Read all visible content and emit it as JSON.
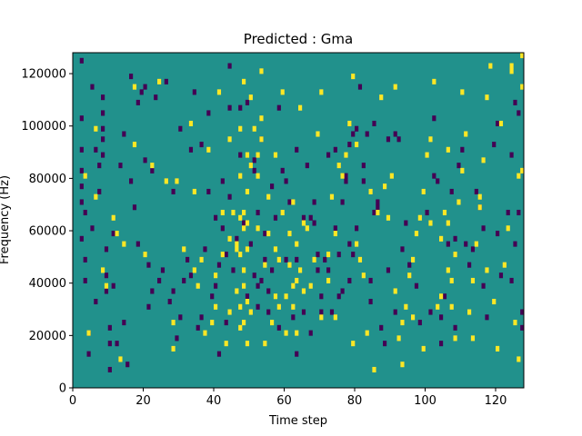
{
  "chart_data": {
    "type": "heatmap",
    "title": "Predicted : Gma",
    "xlabel": "Time step",
    "ylabel": "Frequency (Hz)",
    "xlim": [
      0,
      128
    ],
    "ylim": [
      0,
      128000
    ],
    "xticks": [
      0,
      20,
      40,
      60,
      80,
      100,
      120
    ],
    "yticks": [
      0,
      20000,
      40000,
      60000,
      80000,
      100000,
      120000
    ],
    "xtick_labels": [
      "0",
      "20",
      "40",
      "60",
      "80",
      "100",
      "120"
    ],
    "ytick_labels": [
      "0",
      "20000",
      "40000",
      "60000",
      "80000",
      "100000",
      "120000"
    ],
    "grid": false,
    "colormap": "viridis",
    "colors": {
      "background": "#21918c",
      "low": "#440154",
      "high": "#fde725"
    },
    "values_legend": {
      "background": 0,
      "low": -1,
      "high": 1
    },
    "n_time_steps": 128,
    "n_freq_bins": 64,
    "bin_hz": 2000,
    "low_cells": [
      [
        2,
        62
      ],
      [
        2,
        51
      ],
      [
        2,
        45
      ],
      [
        2,
        41
      ],
      [
        2,
        38
      ],
      [
        2,
        35
      ],
      [
        3,
        33
      ],
      [
        2,
        28
      ],
      [
        3,
        24
      ],
      [
        3,
        20
      ],
      [
        4,
        10
      ],
      [
        4,
        6
      ],
      [
        5,
        57
      ],
      [
        6,
        45
      ],
      [
        7,
        42
      ],
      [
        7,
        37
      ],
      [
        8,
        55
      ],
      [
        8,
        52
      ],
      [
        8,
        49
      ],
      [
        8,
        47
      ],
      [
        8,
        44
      ],
      [
        9,
        26
      ],
      [
        9,
        21
      ],
      [
        9,
        18
      ],
      [
        10,
        11
      ],
      [
        10,
        8
      ],
      [
        11,
        29
      ],
      [
        11,
        19
      ],
      [
        14,
        12
      ],
      [
        15,
        4
      ],
      [
        16,
        59
      ],
      [
        18,
        54
      ],
      [
        19,
        56
      ],
      [
        20,
        57
      ],
      [
        21,
        23
      ],
      [
        21,
        15
      ],
      [
        22,
        18
      ],
      [
        22,
        41
      ],
      [
        24,
        20
      ],
      [
        25,
        22
      ],
      [
        28,
        37
      ],
      [
        28,
        18
      ],
      [
        30,
        49
      ],
      [
        32,
        24
      ],
      [
        33,
        21
      ],
      [
        35,
        11
      ],
      [
        36,
        13
      ],
      [
        37,
        26
      ],
      [
        38,
        37
      ],
      [
        39,
        17
      ],
      [
        40,
        19
      ],
      [
        40,
        32
      ],
      [
        41,
        23
      ],
      [
        42,
        30
      ],
      [
        42,
        39
      ],
      [
        43,
        25
      ],
      [
        44,
        53
      ],
      [
        44,
        61
      ],
      [
        47,
        53
      ],
      [
        47,
        44
      ],
      [
        48,
        31
      ],
      [
        49,
        54
      ],
      [
        50,
        27
      ],
      [
        51,
        21
      ],
      [
        51,
        41
      ],
      [
        51,
        43
      ],
      [
        52,
        15
      ],
      [
        52,
        19
      ],
      [
        53,
        20
      ],
      [
        53,
        47
      ],
      [
        54,
        24
      ],
      [
        54,
        29
      ],
      [
        55,
        18
      ],
      [
        56,
        22
      ],
      [
        57,
        32
      ],
      [
        58,
        53
      ],
      [
        59,
        41
      ],
      [
        60,
        24
      ],
      [
        61,
        35
      ],
      [
        62,
        13
      ],
      [
        63,
        24
      ],
      [
        63,
        45
      ],
      [
        65,
        32
      ],
      [
        66,
        42
      ],
      [
        68,
        31
      ],
      [
        68,
        35
      ],
      [
        69,
        22
      ],
      [
        70,
        14
      ],
      [
        70,
        17
      ],
      [
        71,
        24
      ],
      [
        72,
        44
      ],
      [
        73,
        14
      ],
      [
        74,
        30
      ],
      [
        75,
        25
      ],
      [
        76,
        18
      ],
      [
        76,
        35
      ],
      [
        77,
        40
      ],
      [
        77,
        39
      ],
      [
        78,
        27
      ],
      [
        78,
        20
      ],
      [
        79,
        25
      ],
      [
        80,
        30
      ],
      [
        80,
        49
      ],
      [
        81,
        57
      ],
      [
        82,
        39
      ],
      [
        82,
        42
      ],
      [
        83,
        48
      ],
      [
        84,
        20
      ],
      [
        85,
        50
      ],
      [
        86,
        34
      ],
      [
        86,
        35
      ],
      [
        89,
        22
      ],
      [
        89,
        47
      ],
      [
        91,
        14
      ],
      [
        91,
        48
      ],
      [
        93,
        26
      ],
      [
        94,
        31
      ],
      [
        95,
        23
      ],
      [
        98,
        12
      ],
      [
        101,
        14
      ],
      [
        102,
        40
      ],
      [
        102,
        51
      ],
      [
        103,
        39
      ],
      [
        104,
        13
      ],
      [
        106,
        27
      ],
      [
        107,
        37
      ],
      [
        108,
        11
      ],
      [
        108,
        28
      ],
      [
        109,
        42
      ],
      [
        110,
        45
      ],
      [
        111,
        27
      ],
      [
        112,
        23
      ],
      [
        114,
        37
      ],
      [
        115,
        34
      ],
      [
        116,
        30
      ],
      [
        117,
        13
      ],
      [
        119,
        46
      ],
      [
        120,
        29
      ],
      [
        120,
        50
      ],
      [
        121,
        21
      ],
      [
        123,
        33
      ],
      [
        124,
        20
      ],
      [
        124,
        44
      ],
      [
        125,
        27
      ],
      [
        126,
        33
      ],
      [
        127,
        11
      ],
      [
        127,
        14
      ],
      [
        126,
        52
      ],
      [
        125,
        54
      ],
      [
        116,
        19
      ],
      [
        113,
        26
      ],
      [
        105,
        17
      ],
      [
        104,
        8
      ],
      [
        100,
        33
      ],
      [
        97,
        19
      ],
      [
        92,
        47
      ],
      [
        88,
        8
      ],
      [
        87,
        11
      ],
      [
        85,
        33
      ],
      [
        84,
        16
      ],
      [
        79,
        48
      ],
      [
        78,
        46
      ],
      [
        75,
        17
      ],
      [
        74,
        45
      ],
      [
        72,
        22
      ],
      [
        69,
        25
      ],
      [
        67,
        10
      ],
      [
        67,
        32
      ],
      [
        65,
        14
      ],
      [
        63,
        6
      ],
      [
        60,
        39
      ],
      [
        58,
        11
      ],
      [
        56,
        38
      ],
      [
        55,
        14
      ],
      [
        52,
        33
      ],
      [
        49,
        17
      ],
      [
        46,
        28
      ],
      [
        45,
        22
      ],
      [
        44,
        36
      ],
      [
        43,
        12
      ],
      [
        41,
        6
      ],
      [
        38,
        52
      ],
      [
        36,
        46
      ],
      [
        34,
        56
      ],
      [
        33,
        45
      ],
      [
        31,
        20
      ],
      [
        30,
        13
      ],
      [
        29,
        9
      ],
      [
        27,
        16
      ],
      [
        26,
        58
      ],
      [
        23,
        55
      ],
      [
        20,
        43
      ],
      [
        18,
        27
      ],
      [
        17,
        34
      ],
      [
        16,
        39
      ],
      [
        14,
        48
      ],
      [
        13,
        42
      ],
      [
        12,
        8
      ],
      [
        10,
        3
      ],
      [
        6,
        16
      ],
      [
        5,
        30
      ]
    ],
    "high_cells": [
      [
        3,
        40
      ],
      [
        4,
        10
      ],
      [
        6,
        49
      ],
      [
        6,
        36
      ],
      [
        8,
        22
      ],
      [
        9,
        19
      ],
      [
        11,
        32
      ],
      [
        12,
        29
      ],
      [
        13,
        5
      ],
      [
        14,
        27
      ],
      [
        17,
        57
      ],
      [
        17,
        46
      ],
      [
        20,
        25
      ],
      [
        22,
        42
      ],
      [
        24,
        58
      ],
      [
        26,
        39
      ],
      [
        28,
        7
      ],
      [
        28,
        12
      ],
      [
        29,
        39
      ],
      [
        31,
        26
      ],
      [
        33,
        50
      ],
      [
        34,
        22
      ],
      [
        34,
        37
      ],
      [
        35,
        19
      ],
      [
        36,
        24
      ],
      [
        37,
        10
      ],
      [
        38,
        45
      ],
      [
        39,
        12
      ],
      [
        40,
        15
      ],
      [
        40,
        21
      ],
      [
        41,
        56
      ],
      [
        42,
        33
      ],
      [
        44,
        47
      ],
      [
        44,
        28
      ],
      [
        46,
        18
      ],
      [
        46,
        26
      ],
      [
        47,
        11
      ],
      [
        47,
        15
      ],
      [
        47,
        25
      ],
      [
        47,
        32
      ],
      [
        47,
        40
      ],
      [
        48,
        12
      ],
      [
        48,
        19
      ],
      [
        48,
        22
      ],
      [
        48,
        30
      ],
      [
        48,
        33
      ],
      [
        49,
        8
      ],
      [
        49,
        16
      ],
      [
        49,
        26
      ],
      [
        49,
        31
      ],
      [
        49,
        37
      ],
      [
        50,
        42
      ],
      [
        50,
        55
      ],
      [
        52,
        40
      ],
      [
        52,
        44
      ],
      [
        53,
        47
      ],
      [
        53,
        51
      ],
      [
        53,
        60
      ],
      [
        54,
        23
      ],
      [
        55,
        29
      ],
      [
        56,
        12
      ],
      [
        57,
        17
      ],
      [
        57,
        26
      ],
      [
        58,
        15
      ],
      [
        58,
        24
      ],
      [
        59,
        33
      ],
      [
        60,
        10
      ],
      [
        60,
        17
      ],
      [
        61,
        23
      ],
      [
        61,
        29
      ],
      [
        62,
        15
      ],
      [
        62,
        19
      ],
      [
        63,
        10
      ],
      [
        63,
        20
      ],
      [
        63,
        27
      ],
      [
        64,
        22
      ],
      [
        65,
        18
      ],
      [
        65,
        31
      ],
      [
        67,
        19
      ],
      [
        68,
        24
      ],
      [
        70,
        13
      ],
      [
        70,
        56
      ],
      [
        72,
        25
      ],
      [
        73,
        36
      ],
      [
        74,
        29
      ],
      [
        75,
        42
      ],
      [
        77,
        44
      ],
      [
        78,
        50
      ],
      [
        79,
        59
      ],
      [
        80,
        27
      ],
      [
        81,
        24
      ],
      [
        82,
        21
      ],
      [
        84,
        37
      ],
      [
        86,
        33
      ],
      [
        88,
        38
      ],
      [
        90,
        40
      ],
      [
        91,
        18
      ],
      [
        92,
        9
      ],
      [
        93,
        12
      ],
      [
        94,
        15
      ],
      [
        95,
        21
      ],
      [
        96,
        24
      ],
      [
        97,
        29
      ],
      [
        98,
        32
      ],
      [
        99,
        37
      ],
      [
        100,
        44
      ],
      [
        101,
        47
      ],
      [
        102,
        58
      ],
      [
        103,
        15
      ],
      [
        104,
        28
      ],
      [
        105,
        33
      ],
      [
        106,
        22
      ],
      [
        106,
        31
      ],
      [
        107,
        15
      ],
      [
        107,
        20
      ],
      [
        108,
        9
      ],
      [
        108,
        25
      ],
      [
        109,
        35
      ],
      [
        110,
        41
      ],
      [
        111,
        48
      ],
      [
        112,
        14
      ],
      [
        113,
        20
      ],
      [
        114,
        27
      ],
      [
        115,
        34
      ],
      [
        116,
        43
      ],
      [
        117,
        55
      ],
      [
        118,
        61
      ],
      [
        119,
        16
      ],
      [
        121,
        50
      ],
      [
        122,
        23
      ],
      [
        123,
        30
      ],
      [
        124,
        60
      ],
      [
        125,
        12
      ],
      [
        126,
        40
      ],
      [
        127,
        41
      ],
      [
        127,
        63
      ],
      [
        127,
        57
      ],
      [
        126,
        5
      ],
      [
        124,
        61
      ],
      [
        120,
        7
      ],
      [
        117,
        22
      ],
      [
        115,
        36
      ],
      [
        113,
        9
      ],
      [
        110,
        56
      ],
      [
        106,
        45
      ],
      [
        104,
        17
      ],
      [
        101,
        31
      ],
      [
        99,
        7
      ],
      [
        96,
        13
      ],
      [
        93,
        4
      ],
      [
        91,
        57
      ],
      [
        89,
        32
      ],
      [
        87,
        55
      ],
      [
        85,
        3
      ],
      [
        83,
        10
      ],
      [
        80,
        46
      ],
      [
        79,
        8
      ],
      [
        76,
        40
      ],
      [
        74,
        13
      ],
      [
        72,
        20
      ],
      [
        69,
        48
      ],
      [
        66,
        30
      ],
      [
        64,
        53
      ],
      [
        62,
        35
      ],
      [
        59,
        56
      ],
      [
        57,
        44
      ],
      [
        55,
        36
      ],
      [
        54,
        8
      ],
      [
        52,
        30
      ],
      [
        51,
        49
      ],
      [
        50,
        14
      ],
      [
        49,
        44
      ],
      [
        48,
        58
      ],
      [
        47,
        49
      ],
      [
        46,
        27
      ],
      [
        45,
        33
      ],
      [
        44,
        14
      ],
      [
        43,
        8
      ],
      [
        42,
        25
      ]
    ]
  }
}
